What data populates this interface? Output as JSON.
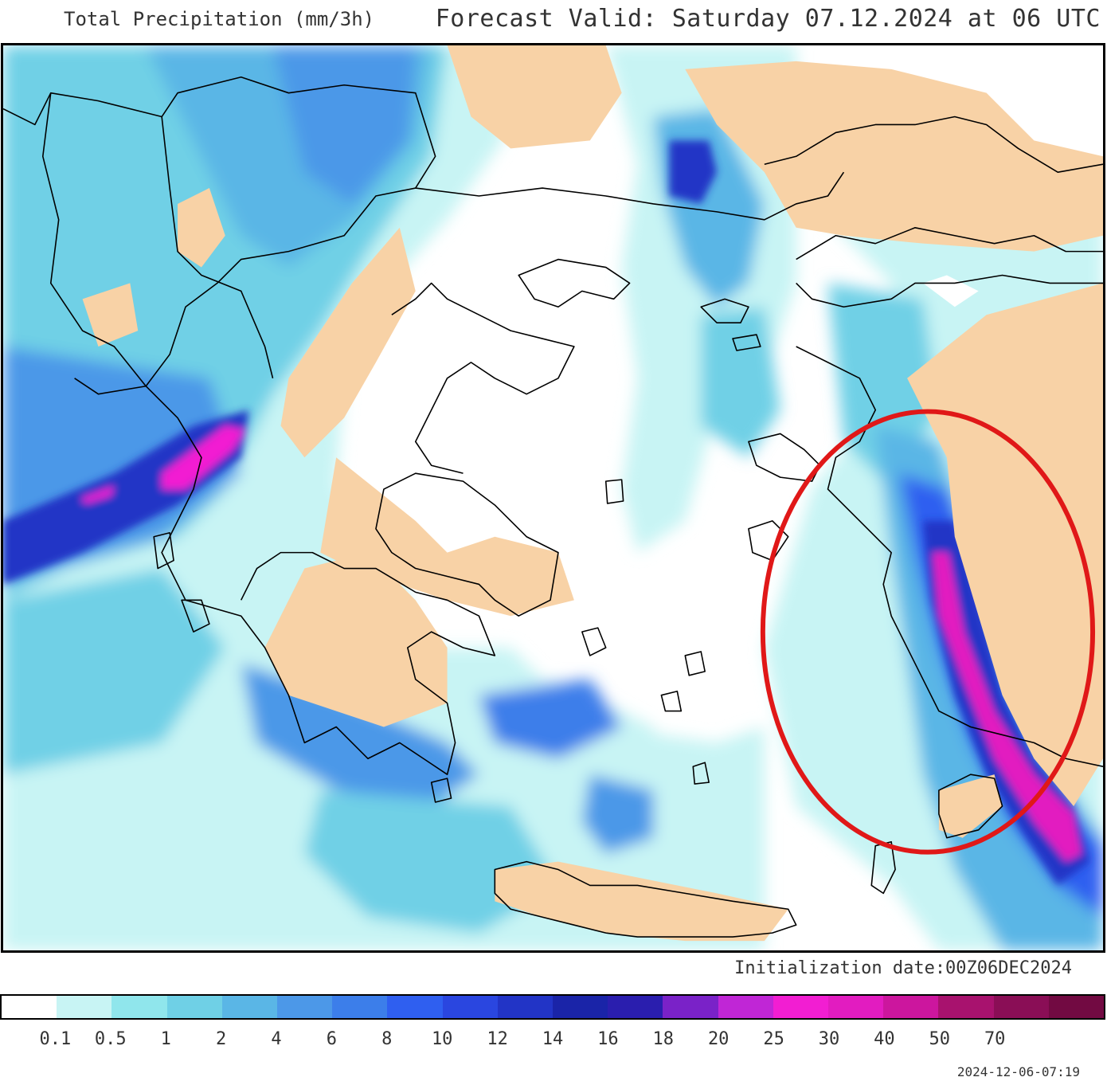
{
  "header": {
    "title_left": "Total Precipitation (mm/3h)",
    "title_right": "Forecast Valid:  Saturday 07.12.2024 at 06 UTC"
  },
  "footer": {
    "init_label": "Initialization date:00Z06DEC2024",
    "timestamp": "2024-12-06-07:19"
  },
  "legend": {
    "colors": [
      "#ffffff",
      "#c8f4f4",
      "#90e6ec",
      "#6fd0e6",
      "#5ab6e6",
      "#4c98e8",
      "#3c7eea",
      "#2f5ff0",
      "#2a46e0",
      "#2234c6",
      "#1a24a8",
      "#2a1eae",
      "#7a22c8",
      "#c026d6",
      "#f21ed2",
      "#e21cc0",
      "#cc169e",
      "#a8126e",
      "#8a0e56",
      "#720a42"
    ],
    "ticks": [
      "0.1",
      "0.5",
      "1",
      "2",
      "4",
      "6",
      "8",
      "10",
      "12",
      "14",
      "16",
      "18",
      "20",
      "25",
      "30",
      "40",
      "50",
      "70"
    ]
  },
  "map": {
    "colors": {
      "land": "#f8d2a6",
      "coast": "#000000",
      "highlight": "#e01818"
    }
  }
}
